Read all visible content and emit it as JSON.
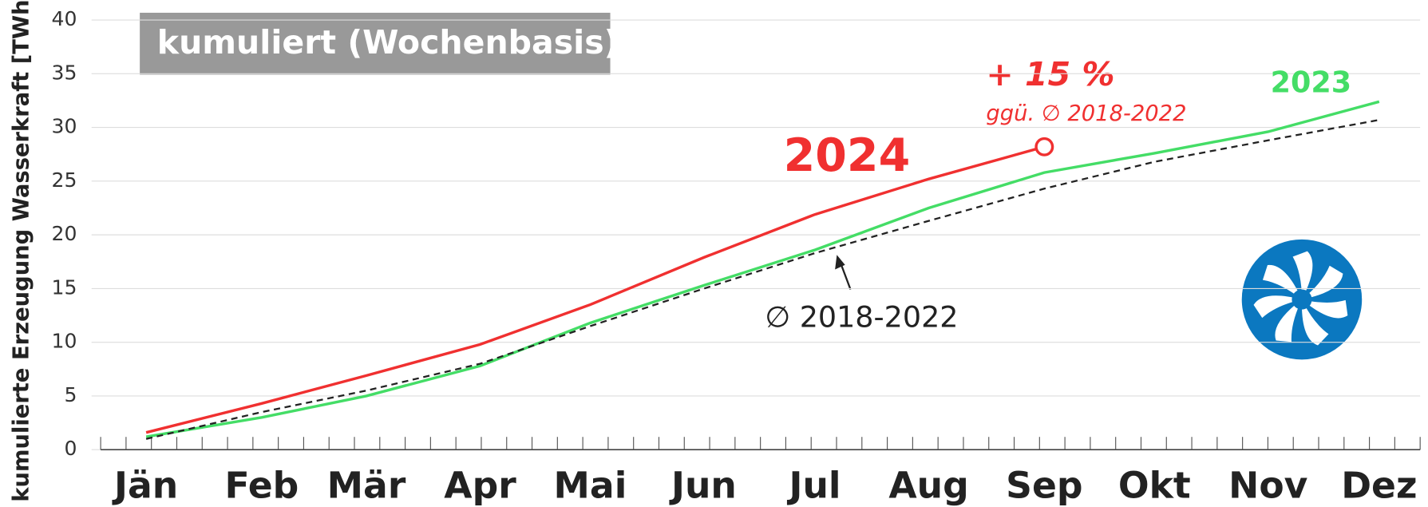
{
  "chart_data": {
    "type": "line",
    "title": "kumuliert (Wochenbasis)",
    "y_label": "kumulierte Erzeugung  Wasserkraft [TWh]",
    "categories": [
      "Jän",
      "Feb",
      "Mär",
      "Apr",
      "Mai",
      "Jun",
      "Jul",
      "Aug",
      "Sep",
      "Okt",
      "Nov",
      "Dez"
    ],
    "series": [
      {
        "name": "2024",
        "color": "#f03030",
        "values": [
          1.6,
          4.3,
          6.9,
          9.8,
          13.5,
          17.9,
          21.9,
          25.2,
          28.2,
          null,
          null,
          null
        ]
      },
      {
        "name": "2023",
        "color": "#44dd66",
        "values": [
          1.2,
          3.0,
          5.0,
          7.8,
          11.8,
          15.3,
          18.6,
          22.5,
          25.8,
          27.6,
          29.6,
          32.4
        ]
      },
      {
        "name": "∅ 2018-2022",
        "color": "#222222",
        "dashed": true,
        "values": [
          1.0,
          3.5,
          5.5,
          8.0,
          11.5,
          15.0,
          18.3,
          21.3,
          24.3,
          26.8,
          28.8,
          30.7
        ]
      }
    ],
    "annotations": [
      "+ 15 %",
      "ggü. ∅ 2018-2022"
    ],
    "ylim": [
      0,
      40
    ],
    "yticks": [
      0,
      5,
      10,
      15,
      20,
      25,
      30,
      35,
      40
    ],
    "grid": true
  }
}
